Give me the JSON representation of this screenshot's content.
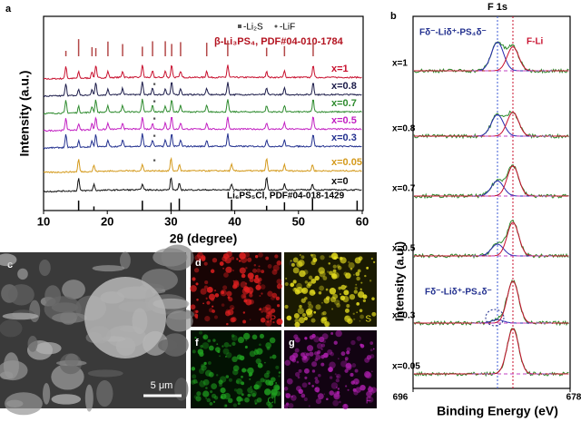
{
  "panel_labels": [
    "a",
    "b",
    "c",
    "d",
    "e",
    "f",
    "g"
  ],
  "panel_a": {
    "xlabel": "2θ (degree)",
    "ylabel": "Intensity (a.u.)",
    "xticks": [
      10,
      20,
      30,
      40,
      50,
      60
    ],
    "legend": [
      "-Li₂S",
      "-LiF"
    ],
    "reference_top": "β-Li₃PS₄, PDF#04-010-1784",
    "reference_bottom": "Li₆PS₅Cl, PDF#04-018-1429",
    "curves": [
      {
        "label": "x=1",
        "color": "#c8102e"
      },
      {
        "label": "x=0.8",
        "color": "#1c1c4a"
      },
      {
        "label": "x=0.7",
        "color": "#2e8b2e"
      },
      {
        "label": "x=0.5",
        "color": "#c21fc2"
      },
      {
        "label": "x=0.3",
        "color": "#22308f"
      },
      {
        "label": "x=0.05",
        "color": "#d49a1c"
      },
      {
        "label": "x=0",
        "color": "#111111"
      }
    ]
  },
  "panel_b": {
    "title": "F 1s",
    "xlabel": "Binding Energy (eV)",
    "ylabel": "Intensity (a.u.)",
    "xticks": [
      696,
      678
    ],
    "annotations": [
      "Fδ⁻-Liδ⁺-PS₄δ⁻",
      "F-Li",
      "Fδ⁻-Liδ⁺-PS₄δ⁻"
    ],
    "curves": [
      "x=1",
      "x=0.8",
      "x=0.7",
      "x=0.5",
      "x=0.3",
      "x=0.05"
    ]
  },
  "panel_c": {
    "scale_bar": "5 μm"
  },
  "maps": [
    "P",
    "S",
    "Cl",
    "F"
  ]
}
